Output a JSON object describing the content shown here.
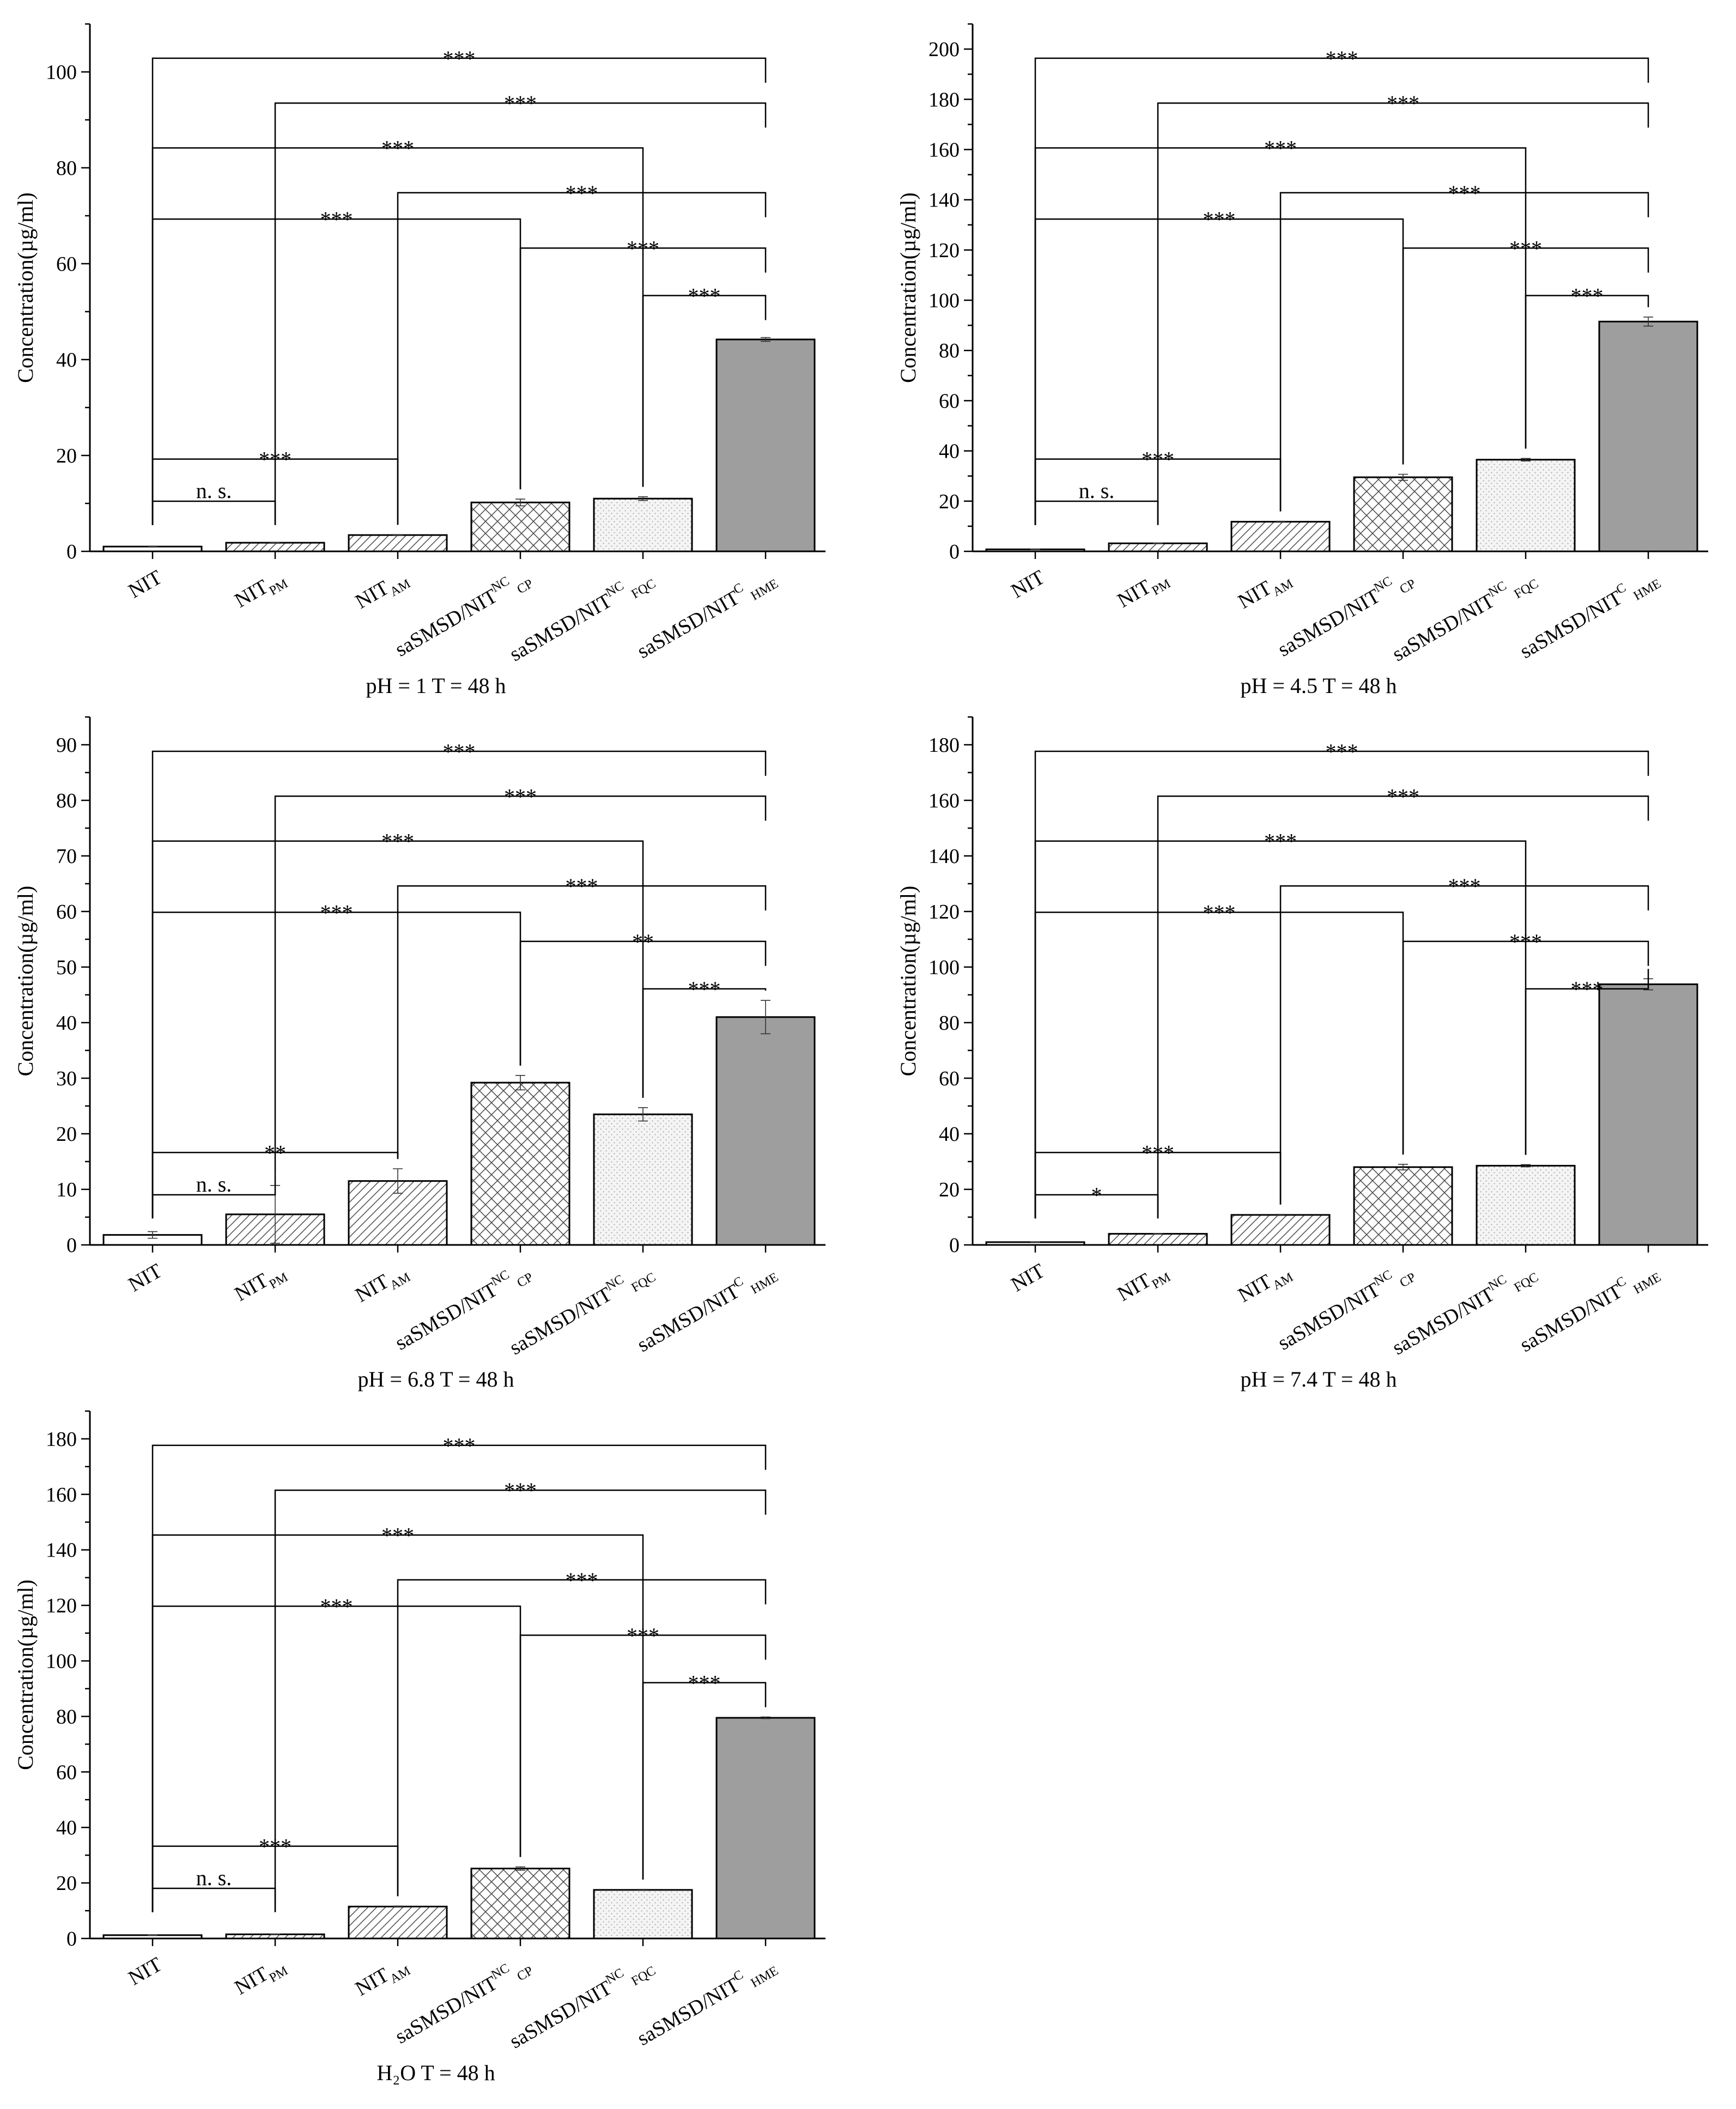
{
  "figure": {
    "y_axis_label": "Concentration(µg/ml)",
    "categories": [
      {
        "main": "NIT",
        "sup": "",
        "sub": ""
      },
      {
        "main": "NIT",
        "sup": "",
        "sub": "PM"
      },
      {
        "main": "NIT",
        "sup": "",
        "sub": "AM"
      },
      {
        "main": "saSMSD/NIT",
        "sup": "NC",
        "sub": "CP"
      },
      {
        "main": "saSMSD/NIT",
        "sup": "NC",
        "sub": "FQC"
      },
      {
        "main": "saSMSD/NIT",
        "sup": "C",
        "sub": "HME"
      }
    ]
  },
  "chart_data": [
    {
      "type": "bar",
      "caption": "pH = 1 T = 48 h",
      "ylabel": "Concentration(µg/ml)",
      "ylim": [
        0,
        110
      ],
      "yticks": [
        0,
        20,
        40,
        60,
        80,
        100
      ],
      "values": [
        1.0,
        1.8,
        3.4,
        10.2,
        11.0,
        44.2
      ],
      "errors": [
        0.1,
        0.1,
        0.1,
        0.7,
        0.4,
        0.4
      ],
      "significance": [
        {
          "from": 0,
          "to": 5,
          "label": "***"
        },
        {
          "from": 1,
          "to": 5,
          "label": "***"
        },
        {
          "from": 0,
          "to": 4,
          "label": "***"
        },
        {
          "from": 2,
          "to": 5,
          "label": "***"
        },
        {
          "from": 0,
          "to": 3,
          "label": "***"
        },
        {
          "from": 3,
          "to": 5,
          "label": "***"
        },
        {
          "from": 4,
          "to": 5,
          "label": "***"
        },
        {
          "from": 0,
          "to": 2,
          "label": "***"
        },
        {
          "from": 0,
          "to": 1,
          "label": "n. s."
        }
      ]
    },
    {
      "type": "bar",
      "caption": "pH = 4.5 T = 48 h",
      "ylabel": "Concentration(µg/ml)",
      "ylim": [
        0,
        210
      ],
      "yticks": [
        0,
        20,
        40,
        60,
        80,
        100,
        120,
        140,
        160,
        180,
        200
      ],
      "values": [
        0.8,
        3.2,
        11.8,
        29.5,
        36.5,
        91.5
      ],
      "errors": [
        0.1,
        0.1,
        0.2,
        1.2,
        0.5,
        1.8
      ],
      "significance": [
        {
          "from": 0,
          "to": 5,
          "label": "***"
        },
        {
          "from": 1,
          "to": 5,
          "label": "***"
        },
        {
          "from": 0,
          "to": 4,
          "label": "***"
        },
        {
          "from": 2,
          "to": 5,
          "label": "***"
        },
        {
          "from": 0,
          "to": 3,
          "label": "***"
        },
        {
          "from": 3,
          "to": 5,
          "label": "***"
        },
        {
          "from": 4,
          "to": 5,
          "label": "***"
        },
        {
          "from": 0,
          "to": 2,
          "label": "***"
        },
        {
          "from": 0,
          "to": 1,
          "label": "n. s."
        }
      ]
    },
    {
      "type": "bar",
      "caption": "pH = 6.8 T = 48 h",
      "ylabel": "Concentration(µg/ml)",
      "ylim": [
        0,
        95
      ],
      "yticks": [
        0,
        10,
        20,
        30,
        40,
        50,
        60,
        70,
        80,
        90
      ],
      "values": [
        1.8,
        5.5,
        11.5,
        29.2,
        23.5,
        41.0
      ],
      "errors": [
        0.6,
        5.2,
        2.2,
        1.3,
        1.2,
        3.0
      ],
      "significance": [
        {
          "from": 0,
          "to": 5,
          "label": "***"
        },
        {
          "from": 1,
          "to": 5,
          "label": "***"
        },
        {
          "from": 0,
          "to": 4,
          "label": "***"
        },
        {
          "from": 2,
          "to": 5,
          "label": "***"
        },
        {
          "from": 0,
          "to": 3,
          "label": "***"
        },
        {
          "from": 3,
          "to": 5,
          "label": "**"
        },
        {
          "from": 4,
          "to": 5,
          "label": "***"
        },
        {
          "from": 0,
          "to": 2,
          "label": "**"
        },
        {
          "from": 0,
          "to": 1,
          "label": "n. s."
        }
      ]
    },
    {
      "type": "bar",
      "caption": "pH = 7.4 T = 48 h",
      "ylabel": "Concentration(µg/ml)",
      "ylim": [
        0,
        190
      ],
      "yticks": [
        0,
        20,
        40,
        60,
        80,
        100,
        120,
        140,
        160,
        180
      ],
      "values": [
        1.0,
        4.0,
        10.8,
        28.0,
        28.5,
        93.8
      ],
      "errors": [
        0.1,
        0.1,
        0.2,
        1.0,
        0.4,
        2.0
      ],
      "significance": [
        {
          "from": 0,
          "to": 5,
          "label": "***"
        },
        {
          "from": 1,
          "to": 5,
          "label": "***"
        },
        {
          "from": 0,
          "to": 4,
          "label": "***"
        },
        {
          "from": 2,
          "to": 5,
          "label": "***"
        },
        {
          "from": 0,
          "to": 3,
          "label": "***"
        },
        {
          "from": 3,
          "to": 5,
          "label": "***"
        },
        {
          "from": 4,
          "to": 5,
          "label": "***"
        },
        {
          "from": 0,
          "to": 2,
          "label": "***"
        },
        {
          "from": 0,
          "to": 1,
          "label": "*"
        }
      ]
    },
    {
      "type": "bar",
      "caption": "H₂O T = 48 h",
      "ylabel": "Concentration(µg/ml)",
      "ylim": [
        0,
        190
      ],
      "yticks": [
        0,
        20,
        40,
        60,
        80,
        100,
        120,
        140,
        160,
        180
      ],
      "values": [
        1.2,
        1.5,
        11.5,
        25.2,
        17.5,
        79.5
      ],
      "errors": [
        0.1,
        0.1,
        0.2,
        0.6,
        0.2,
        0.3
      ],
      "significance": [
        {
          "from": 0,
          "to": 5,
          "label": "***"
        },
        {
          "from": 1,
          "to": 5,
          "label": "***"
        },
        {
          "from": 0,
          "to": 4,
          "label": "***"
        },
        {
          "from": 2,
          "to": 5,
          "label": "***"
        },
        {
          "from": 0,
          "to": 3,
          "label": "***"
        },
        {
          "from": 3,
          "to": 5,
          "label": "***"
        },
        {
          "from": 4,
          "to": 5,
          "label": "***"
        },
        {
          "from": 0,
          "to": 2,
          "label": "***"
        },
        {
          "from": 0,
          "to": 1,
          "label": "n. s."
        }
      ]
    }
  ]
}
